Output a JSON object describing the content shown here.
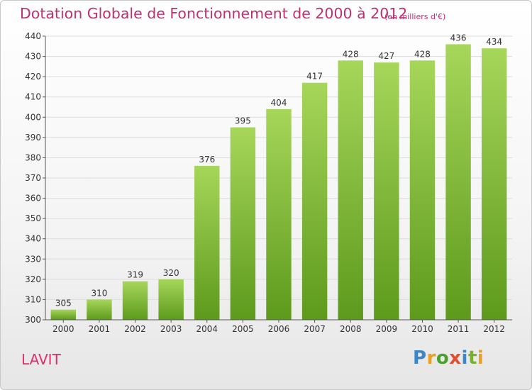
{
  "header": {
    "title": "Dotation Globale de Fonctionnement de 2000 à 2012",
    "unit": "(en milliers d'€)"
  },
  "commune": "LAVIT",
  "logo": {
    "text": "Proxiti",
    "colors": [
      "#3a86c8",
      "#e8a020",
      "#4ca030",
      "#e05030",
      "#3a86c8",
      "#7ab030",
      "#e8a020"
    ]
  },
  "colors": {
    "bar_top": "#a6d65a",
    "bar_bottom": "#5d9a1c",
    "title": "#c03070",
    "grid": "#dcdcdc"
  },
  "chart_data": {
    "type": "bar",
    "categories": [
      "2000",
      "2001",
      "2002",
      "2003",
      "2004",
      "2005",
      "2006",
      "2007",
      "2008",
      "2009",
      "2010",
      "2011",
      "2012"
    ],
    "values": [
      305,
      310,
      319,
      320,
      376,
      395,
      404,
      417,
      428,
      427,
      428,
      436,
      434
    ],
    "data_labels": [
      "305",
      "310",
      "319",
      "320",
      "376",
      "395",
      "404",
      "417",
      "428",
      "427",
      "428",
      "436",
      "434"
    ],
    "ylim": [
      300,
      440
    ],
    "yticks": [
      300,
      310,
      320,
      330,
      340,
      350,
      360,
      370,
      380,
      390,
      400,
      410,
      420,
      430,
      440
    ],
    "grid": true
  }
}
